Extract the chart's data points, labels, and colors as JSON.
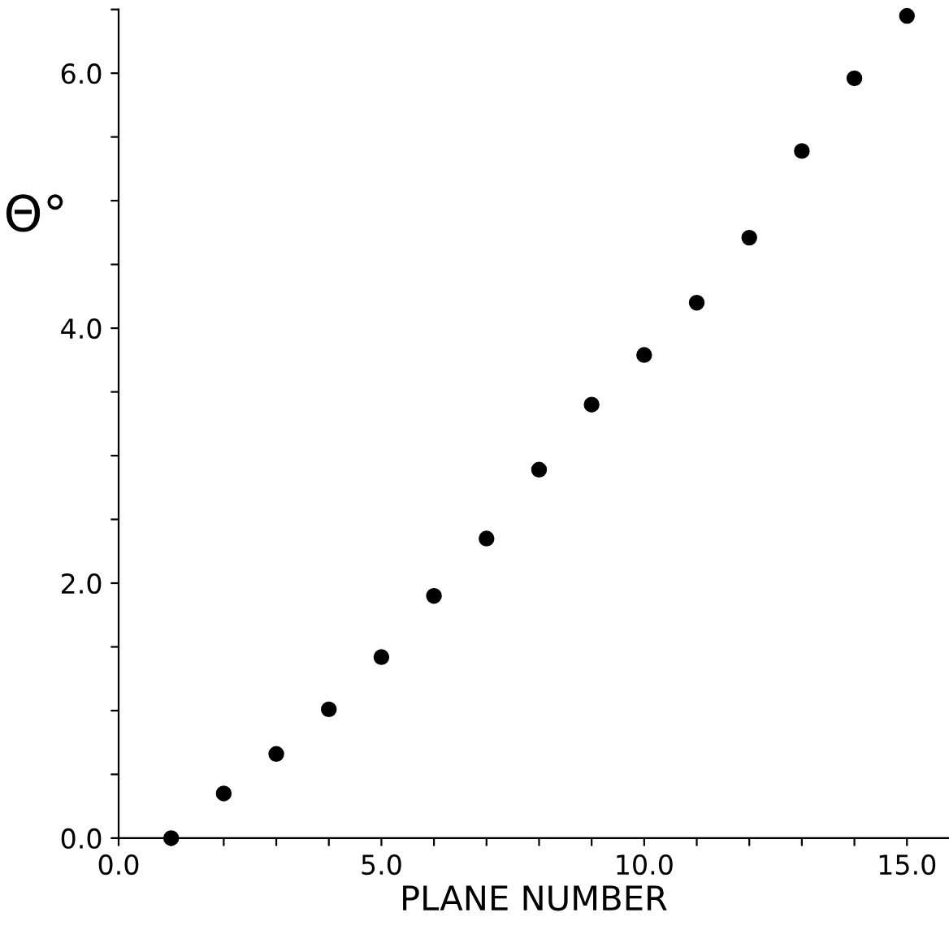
{
  "chart_data": {
    "type": "scatter",
    "xlabel": "PLANE NUMBER",
    "ylabel": "Θ°",
    "x": [
      1,
      2,
      3,
      4,
      5,
      6,
      7,
      8,
      9,
      10,
      11,
      12,
      13,
      14,
      15
    ],
    "values": [
      0.0,
      0.35,
      0.66,
      1.01,
      1.42,
      1.9,
      2.35,
      2.89,
      3.4,
      3.79,
      4.2,
      4.71,
      5.39,
      5.96,
      6.45
    ],
    "color": "#000000",
    "marker": "circle",
    "xlim": [
      0,
      15.8
    ],
    "ylim": [
      0,
      6.5
    ],
    "xticks": [
      {
        "value": 0,
        "label": "0.0"
      },
      {
        "value": 1,
        "label": null
      },
      {
        "value": 2,
        "label": null
      },
      {
        "value": 3,
        "label": null
      },
      {
        "value": 4,
        "label": null
      },
      {
        "value": 5,
        "label": "5.0"
      },
      {
        "value": 6,
        "label": null
      },
      {
        "value": 7,
        "label": null
      },
      {
        "value": 8,
        "label": null
      },
      {
        "value": 9,
        "label": null
      },
      {
        "value": 10,
        "label": "10.0"
      },
      {
        "value": 11,
        "label": null
      },
      {
        "value": 12,
        "label": null
      },
      {
        "value": 13,
        "label": null
      },
      {
        "value": 14,
        "label": null
      },
      {
        "value": 15,
        "label": "15.0"
      }
    ],
    "yticks": [
      {
        "value": 0,
        "label": "0.0"
      },
      {
        "value": 0.5,
        "label": null
      },
      {
        "value": 1,
        "label": null
      },
      {
        "value": 1.5,
        "label": null
      },
      {
        "value": 2,
        "label": "2.0"
      },
      {
        "value": 2.5,
        "label": null
      },
      {
        "value": 3,
        "label": null
      },
      {
        "value": 3.5,
        "label": null
      },
      {
        "value": 4,
        "label": "4.0"
      },
      {
        "value": 4.5,
        "label": null
      },
      {
        "value": 5,
        "label": null
      },
      {
        "value": 5.5,
        "label": null
      },
      {
        "value": 6,
        "label": "6.0"
      },
      {
        "value": 6.5,
        "label": null
      }
    ],
    "grid": false
  }
}
